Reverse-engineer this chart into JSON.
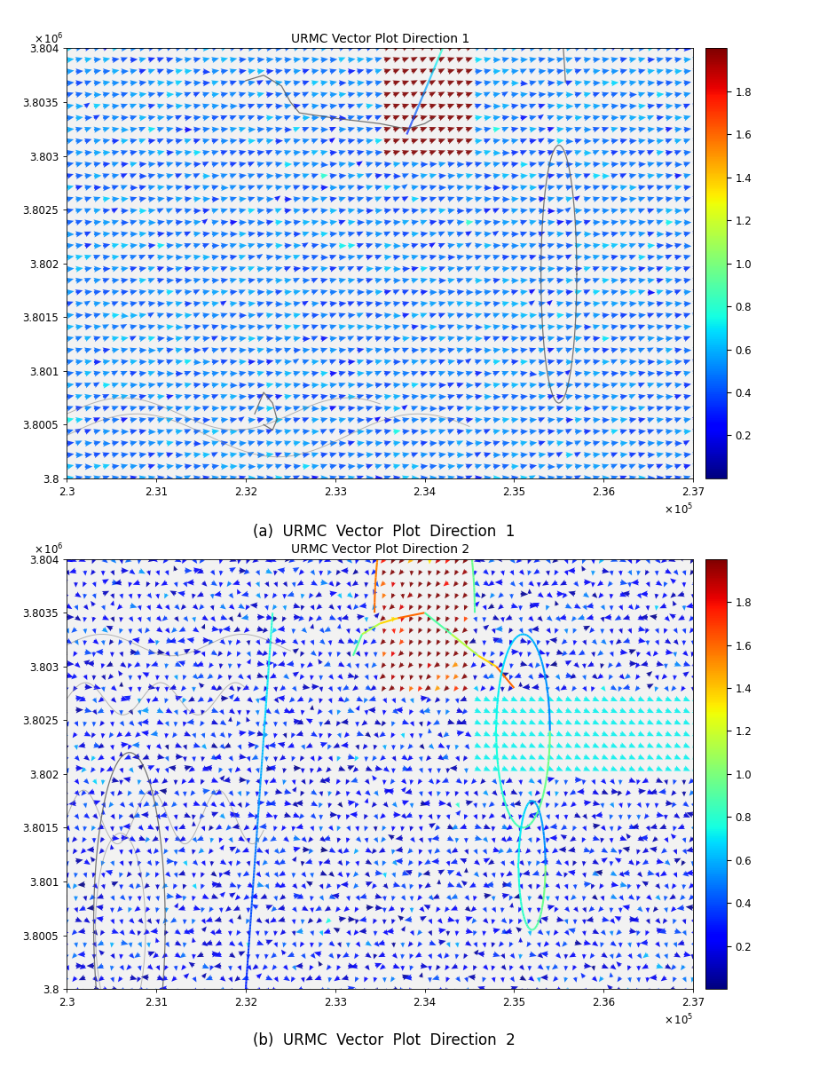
{
  "title1": "URMC Vector Plot Direction 1",
  "title2": "URMC Vector Plot Direction 2",
  "caption1": "(a)  URMC  Vector  Plot  Direction  1",
  "caption2": "(b)  URMC  Vector  Plot  Direction  2",
  "xlim": [
    230000,
    237000
  ],
  "ylim": [
    380000,
    380400
  ],
  "x_ticks": [
    230000,
    231000,
    232000,
    233000,
    234000,
    235000,
    236000,
    237000
  ],
  "x_tick_labels": [
    "2.3",
    "2.31",
    "2.32",
    "2.33",
    "2.34",
    "2.35",
    "2.36",
    "2.37"
  ],
  "y_ticks": [
    380000,
    380050,
    380100,
    380150,
    380200,
    380250,
    380300,
    380350,
    380400
  ],
  "y_tick_labels": [
    "3.8",
    "3.8005",
    "3.801",
    "3.8015",
    "3.802",
    "3.8025",
    "3.803",
    "3.8035",
    "3.804"
  ],
  "cbar_ticks": [
    0.2,
    0.4,
    0.6,
    0.8,
    1.0,
    1.2,
    1.4,
    1.6,
    1.8
  ],
  "cbar_vmin": 0.0,
  "cbar_vmax": 2.0,
  "fig_background": "#ffffff",
  "plot_background": "#f2f2f2",
  "nx": 70,
  "ny": 38
}
